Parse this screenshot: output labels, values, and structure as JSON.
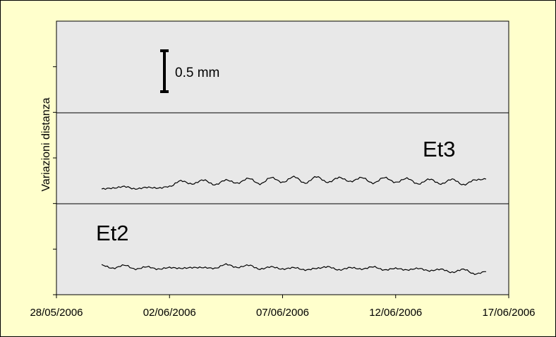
{
  "chart_data": {
    "type": "line",
    "ylabel": "Variazioni distanza",
    "xlabel": "",
    "x_ticks": [
      "28/05/2006",
      "02/06/2006",
      "07/06/2006",
      "12/06/2006",
      "17/06/2006"
    ],
    "xlim": [
      "28/05/2006",
      "17/06/2006"
    ],
    "panels": 3,
    "grid": false,
    "scale_bar": {
      "label": "0.5 mm",
      "value_mm": 0.5
    },
    "series": [
      {
        "name": "Et3",
        "panel": 2,
        "unit": "mm",
        "x": [
          "2006-05-30",
          "2006-05-30T12:00",
          "2006-05-31",
          "2006-05-31T12:00",
          "2006-06-01",
          "2006-06-01T12:00",
          "2006-06-02",
          "2006-06-02T12:00",
          "2006-06-03",
          "2006-06-03T12:00",
          "2006-06-04",
          "2006-06-04T12:00",
          "2006-06-05",
          "2006-06-05T12:00",
          "2006-06-06",
          "2006-06-06T12:00",
          "2006-06-07",
          "2006-06-07T12:00",
          "2006-06-08",
          "2006-06-08T12:00",
          "2006-06-09",
          "2006-06-09T12:00",
          "2006-06-10",
          "2006-06-10T12:00",
          "2006-06-11",
          "2006-06-11T12:00",
          "2006-06-12",
          "2006-06-12T12:00",
          "2006-06-13",
          "2006-06-13T12:00",
          "2006-06-14",
          "2006-06-14T12:00",
          "2006-06-15",
          "2006-06-15T12:00",
          "2006-06-16"
        ],
        "y": [
          0.0,
          0.01,
          0.03,
          0.0,
          0.02,
          0.01,
          0.03,
          0.1,
          0.06,
          0.11,
          0.05,
          0.11,
          0.07,
          0.13,
          0.06,
          0.14,
          0.08,
          0.15,
          0.07,
          0.15,
          0.08,
          0.14,
          0.09,
          0.14,
          0.07,
          0.14,
          0.08,
          0.13,
          0.06,
          0.12,
          0.06,
          0.12,
          0.05,
          0.11,
          0.12
        ]
      },
      {
        "name": "Et2",
        "panel": 3,
        "unit": "mm",
        "x": [
          "2006-05-30",
          "2006-05-30T12:00",
          "2006-05-31",
          "2006-05-31T12:00",
          "2006-06-01",
          "2006-06-01T12:00",
          "2006-06-02",
          "2006-06-02T12:00",
          "2006-06-03",
          "2006-06-03T12:00",
          "2006-06-04",
          "2006-06-04T12:00",
          "2006-06-05",
          "2006-06-05T12:00",
          "2006-06-06",
          "2006-06-06T12:00",
          "2006-06-07",
          "2006-06-07T12:00",
          "2006-06-08",
          "2006-06-08T12:00",
          "2006-06-09",
          "2006-06-09T12:00",
          "2006-06-10",
          "2006-06-10T12:00",
          "2006-06-11",
          "2006-06-11T12:00",
          "2006-06-12",
          "2006-06-12T12:00",
          "2006-06-13",
          "2006-06-13T12:00",
          "2006-06-14",
          "2006-06-14T12:00",
          "2006-06-15",
          "2006-06-15T12:00",
          "2006-06-16"
        ],
        "y": [
          0.0,
          -0.04,
          0.0,
          -0.05,
          -0.02,
          -0.05,
          -0.03,
          -0.04,
          -0.03,
          -0.03,
          -0.04,
          0.01,
          -0.03,
          0.0,
          -0.05,
          -0.02,
          -0.05,
          -0.03,
          -0.06,
          -0.04,
          -0.02,
          -0.06,
          -0.03,
          -0.05,
          -0.02,
          -0.06,
          -0.04,
          -0.06,
          -0.04,
          -0.07,
          -0.05,
          -0.09,
          -0.05,
          -0.11,
          -0.08
        ]
      }
    ]
  }
}
